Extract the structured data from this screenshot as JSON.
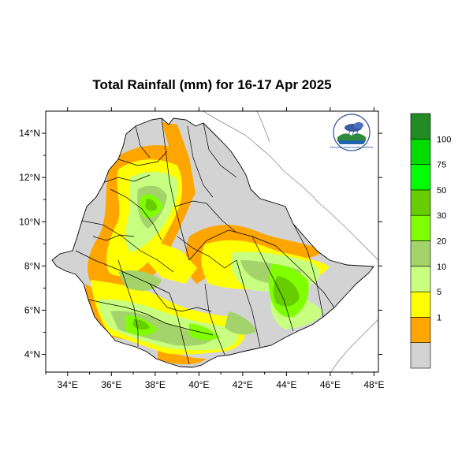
{
  "map": {
    "title": "Total Rainfall (mm) for 16-17 Apr 2025",
    "lon_ticks": [
      "34°E",
      "36°E",
      "38°E",
      "40°E",
      "42°E",
      "44°E",
      "46°E",
      "48°E"
    ],
    "lat_ticks": [
      "14°N",
      "12°N",
      "10°N",
      "8°N",
      "6°N",
      "4°N"
    ],
    "lon_range": [
      33,
      48.2
    ],
    "lat_range": [
      3.2,
      15
    ],
    "region_outline_color": "#000000",
    "neighbor_fill": "#d3d3d3"
  },
  "legend": {
    "classes": [
      {
        "color": "#d3d3d3",
        "label": ""
      },
      {
        "color": "#ffa500",
        "label": "1"
      },
      {
        "color": "#ffff00",
        "label": "5"
      },
      {
        "color": "#c8ff80",
        "label": "10"
      },
      {
        "color": "#a5d36b",
        "label": "20"
      },
      {
        "color": "#80ff00",
        "label": "30"
      },
      {
        "color": "#66cd00",
        "label": "50"
      },
      {
        "color": "#00ff00",
        "label": "75"
      },
      {
        "color": "#00dc00",
        "label": "100"
      },
      {
        "color": "#228b22",
        "label": ""
      }
    ]
  },
  "logo": {
    "name": "ethiopian-meteorology-institute-logo",
    "caption": "Ethiopian Meteorology Institute"
  }
}
